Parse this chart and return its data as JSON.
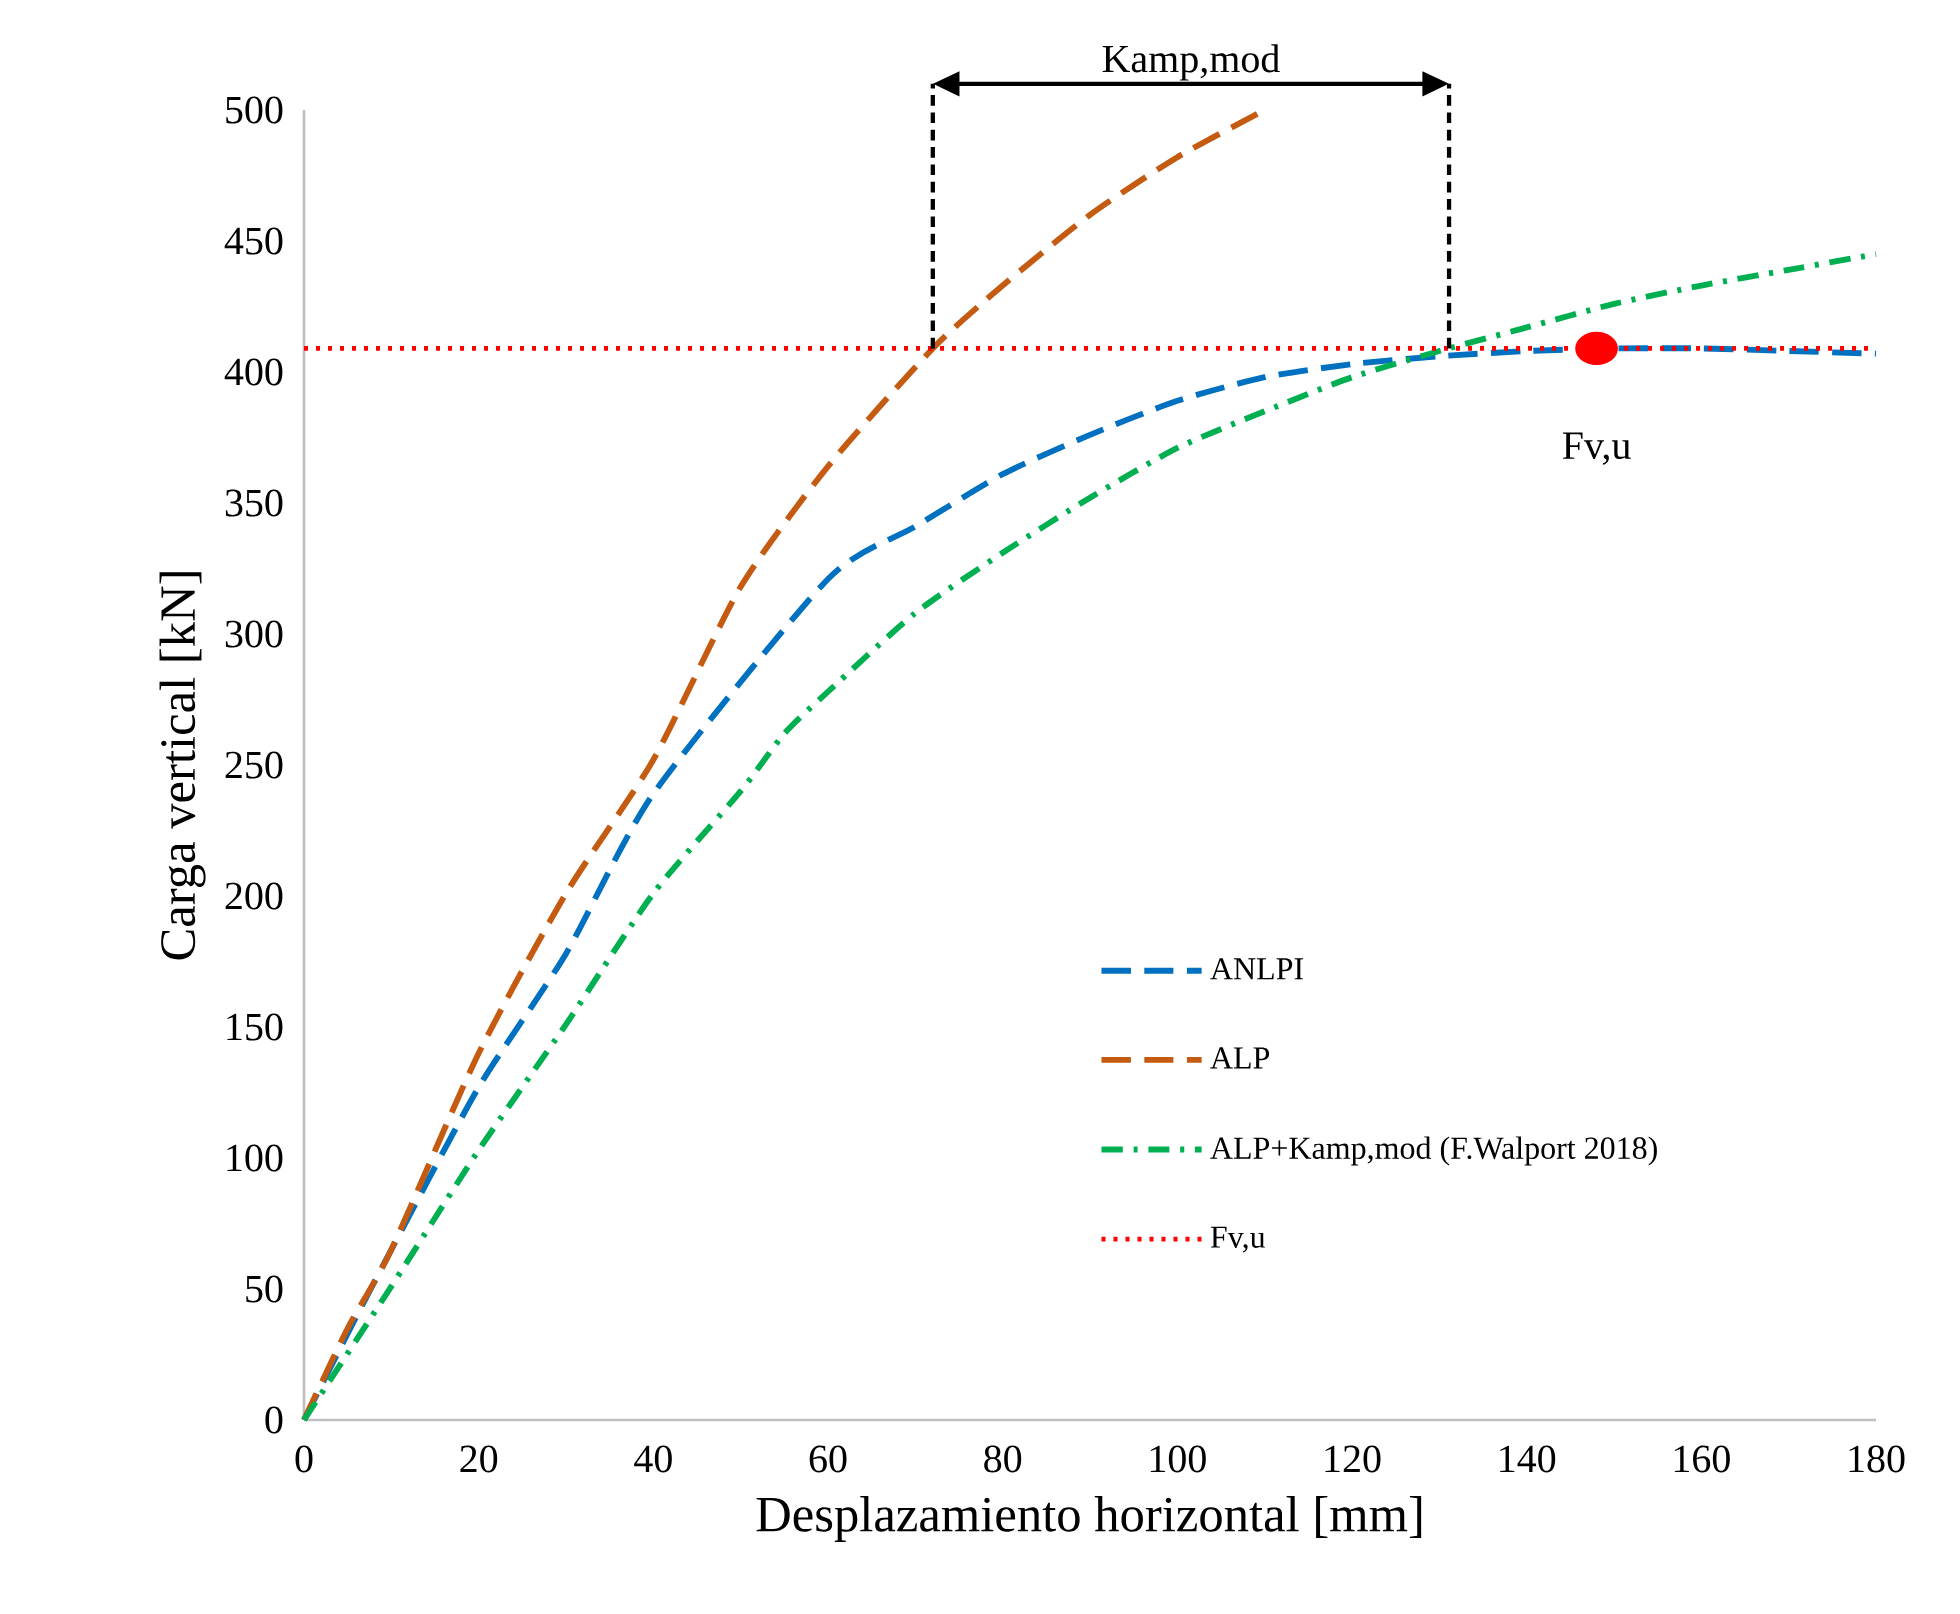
{
  "chart_data": {
    "type": "line",
    "xlabel": "Desplazamiento horizontal [mm]",
    "ylabel": "Carga vertical [kN]",
    "xlim": [
      0,
      180
    ],
    "ylim": [
      0,
      500
    ],
    "xticks": [
      0,
      20,
      40,
      60,
      80,
      100,
      120,
      140,
      160,
      180
    ],
    "yticks": [
      0,
      50,
      100,
      150,
      200,
      250,
      300,
      350,
      400,
      450,
      500
    ],
    "grid": false,
    "legend": "right",
    "marker": "none",
    "series": [
      {
        "name": "ANLPI",
        "color": "#0070c0",
        "line_style": "dashed",
        "x": [
          0,
          5,
          10,
          20,
          30,
          40,
          60,
          70,
          80,
          90,
          100,
          110,
          120,
          130,
          140,
          150,
          160,
          170,
          180
        ],
        "values": [
          0,
          33,
          65,
          127,
          178,
          239,
          321,
          341,
          361,
          376,
          389,
          398,
          403,
          406,
          408,
          409,
          409,
          408,
          407
        ]
      },
      {
        "name": "ALP",
        "color": "#c55a11",
        "line_style": "dashed",
        "x": [
          0,
          5,
          10,
          20,
          30,
          40,
          50,
          60,
          72,
          80,
          90,
          100,
          110
        ],
        "values": [
          0,
          35,
          65,
          140,
          201,
          252,
          318,
          364,
          409,
          433,
          460,
          482,
          500
        ]
      },
      {
        "name": "ALP+Kamp,mod (F.Walport 2018)",
        "color": "#00b050",
        "line_style": "dashdot",
        "x": [
          0,
          10,
          20,
          30,
          40,
          50,
          55,
          60,
          70,
          80,
          90,
          100,
          110,
          120,
          130,
          140,
          150,
          160,
          170,
          180
        ],
        "values": [
          0,
          51,
          103,
          151,
          201,
          240,
          262,
          278,
          308,
          331,
          352,
          371,
          385,
          398,
          408,
          417,
          426,
          433,
          439,
          445
        ]
      },
      {
        "type": "scatter",
        "color": "#ff0000",
        "marker": "circle",
        "x": [
          148
        ],
        "values": [
          409
        ]
      }
    ],
    "ref_lines": [
      {
        "axis": "y",
        "value": 409,
        "label": "Fv,u",
        "color": "#ff0000",
        "line_style": "dotted"
      }
    ],
    "annotations": [
      "Kamp,mod",
      {
        "text": "Fv,u",
        "x": 148,
        "y": 409
      }
    ]
  }
}
